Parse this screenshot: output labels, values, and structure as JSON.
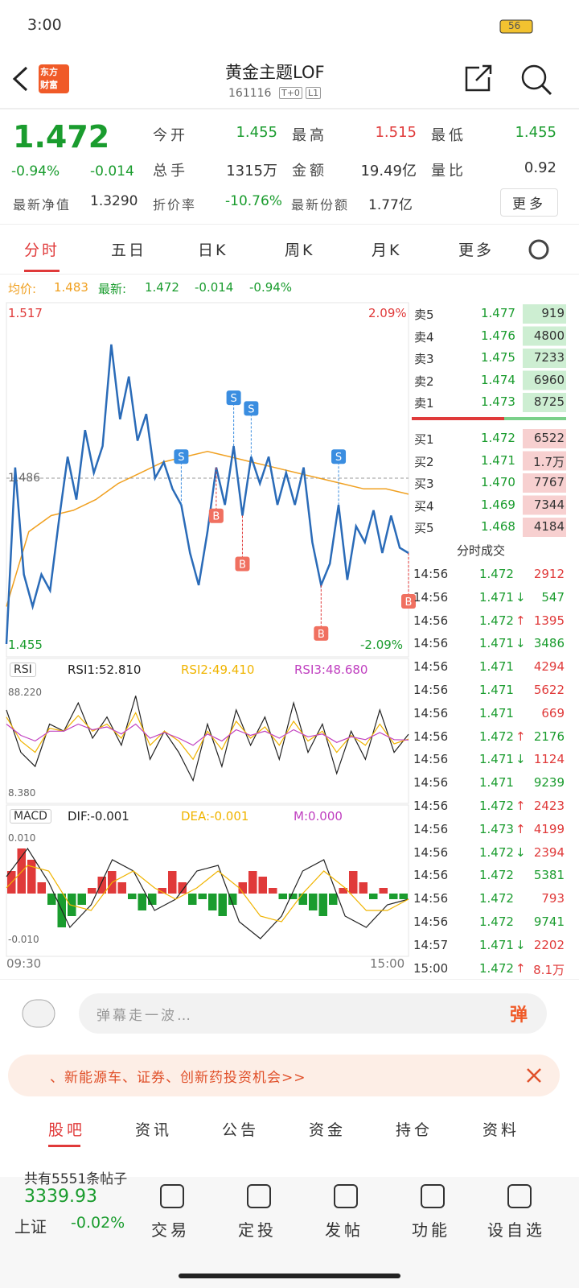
{
  "status": {
    "time": "3:00",
    "battery": "56"
  },
  "header": {
    "title": "黄金主题LOF",
    "code": "161116",
    "tags": [
      "T+0",
      "L1"
    ],
    "logo": "东方\n财富"
  },
  "quote": {
    "price": "1.472",
    "change_pct": "-0.94%",
    "change": "-0.014",
    "fields": [
      {
        "label": "今开",
        "value": "1.455",
        "color": "#1a9c2e"
      },
      {
        "label": "最高",
        "value": "1.515",
        "color": "#e03a3a"
      },
      {
        "label": "最低",
        "value": "1.455",
        "color": "#1a9c2e"
      },
      {
        "label": "总手",
        "value": "1315万",
        "color": "#333333"
      },
      {
        "label": "金额",
        "value": "19.49亿",
        "color": "#333333"
      },
      {
        "label": "量比",
        "value": "0.92",
        "color": "#333333"
      }
    ],
    "extra": [
      {
        "label": "最新净值",
        "value": "1.3290",
        "color": "#333333"
      },
      {
        "label": "折价率",
        "value": "-10.76%",
        "color": "#1a9c2e"
      },
      {
        "label": "最新份额",
        "value": "1.77亿",
        "color": "#333333"
      }
    ],
    "more": "更多"
  },
  "tabs": [
    "分时",
    "五日",
    "日K",
    "周K",
    "月K",
    "更多"
  ],
  "summary": {
    "avg_label": "均价:",
    "avg": "1.483",
    "last_label": "最新:",
    "last": "1.472",
    "change": "-0.014",
    "change_pct": "-0.94%"
  },
  "intraday": {
    "ylim": [
      1.455,
      1.517
    ],
    "ref": 1.486,
    "top_label": "1.517",
    "bottom_label": "1.455",
    "ref_label": "1.486",
    "top_pct": "2.09%",
    "bottom_pct": "-2.09%",
    "x_start": "09:30",
    "x_end": "15:00",
    "price": [
      1.455,
      1.488,
      1.468,
      1.462,
      1.468,
      1.465,
      1.478,
      1.49,
      1.482,
      1.495,
      1.487,
      1.492,
      1.511,
      1.497,
      1.505,
      1.493,
      1.498,
      1.486,
      1.489,
      1.484,
      1.481,
      1.472,
      1.466,
      1.476,
      1.488,
      1.481,
      1.492,
      1.479,
      1.49,
      1.485,
      1.49,
      1.481,
      1.487,
      1.481,
      1.488,
      1.474,
      1.466,
      1.47,
      1.481,
      1.467,
      1.477,
      1.474,
      1.48,
      1.472,
      1.479,
      1.473,
      1.472
    ],
    "avg": [
      1.462,
      1.476,
      1.479,
      1.48,
      1.482,
      1.485,
      1.487,
      1.489,
      1.49,
      1.491,
      1.49,
      1.489,
      1.488,
      1.487,
      1.486,
      1.485,
      1.484,
      1.484,
      1.483
    ],
    "markers": [
      {
        "label": "S",
        "at": 20
      },
      {
        "label": "B",
        "at": 24
      },
      {
        "label": "S",
        "at": 26
      },
      {
        "label": "B",
        "at": 27
      },
      {
        "label": "S",
        "at": 28
      },
      {
        "label": "S",
        "at": 38
      },
      {
        "label": "B",
        "at": 36
      },
      {
        "label": "B",
        "at": 46
      }
    ]
  },
  "rsi": {
    "name": "RSI",
    "lines": [
      {
        "label": "RSI1:52.810",
        "color": "#222222"
      },
      {
        "label": "RSI2:49.410",
        "color": "#f0b400"
      },
      {
        "label": "RSI3:48.680",
        "color": "#c040c0"
      }
    ],
    "top": "88.220",
    "bottom": "8.380",
    "ylim": [
      8.38,
      88.22
    ],
    "series": [
      [
        70,
        40,
        30,
        60,
        55,
        75,
        50,
        65,
        45,
        80,
        35,
        55,
        40,
        20,
        60,
        30,
        70,
        45,
        65,
        35,
        75,
        40,
        60,
        25,
        55,
        35,
        70,
        40,
        52.81
      ],
      [
        65,
        48,
        40,
        57,
        55,
        66,
        55,
        60,
        50,
        68,
        45,
        55,
        48,
        35,
        55,
        42,
        62,
        50,
        58,
        45,
        62,
        48,
        55,
        40,
        52,
        45,
        60,
        46,
        49.41
      ],
      [
        60,
        52,
        48,
        55,
        55,
        60,
        56,
        58,
        53,
        60,
        50,
        54,
        50,
        45,
        53,
        48,
        56,
        52,
        55,
        50,
        56,
        51,
        53,
        47,
        51,
        49,
        54,
        49,
        48.68
      ]
    ]
  },
  "macd": {
    "name": "MACD",
    "dif": "DIF:-0.001",
    "dea": "DEA:-0.001",
    "m": "M:0.000",
    "top": "0.010",
    "bottom": "-0.010",
    "ylim": [
      -0.01,
      0.01
    ],
    "hist": [
      0.004,
      0.008,
      0.006,
      0.002,
      -0.002,
      -0.006,
      -0.004,
      -0.002,
      0.001,
      0.003,
      0.004,
      0.002,
      -0.001,
      -0.003,
      -0.002,
      0.001,
      0.004,
      0.002,
      -0.002,
      -0.001,
      -0.003,
      -0.004,
      -0.002,
      0.002,
      0.004,
      0.003,
      0.001,
      -0.001,
      -0.001,
      -0.002,
      -0.003,
      -0.004,
      -0.002,
      0.001,
      0.004,
      0.002,
      -0.001,
      0.001,
      -0.001,
      -0.001
    ],
    "dif_line": [
      0.003,
      0.008,
      0.002,
      -0.006,
      -0.002,
      0.006,
      0.004,
      -0.003,
      -0.001,
      0.004,
      0.005,
      -0.005,
      -0.008,
      -0.004,
      0.004,
      0.006,
      -0.004,
      -0.006,
      -0.002,
      -0.001
    ],
    "dea_line": [
      0.001,
      0.005,
      0.004,
      -0.002,
      -0.003,
      0.002,
      0.004,
      0.001,
      -0.001,
      0.001,
      0.004,
      0.001,
      -0.004,
      -0.005,
      0.0,
      0.004,
      0.001,
      -0.003,
      -0.003,
      -0.001
    ]
  },
  "orderbook": {
    "sells": [
      {
        "label": "卖5",
        "price": "1.477",
        "vol": "919"
      },
      {
        "label": "卖4",
        "price": "1.476",
        "vol": "4800"
      },
      {
        "label": "卖3",
        "price": "1.475",
        "vol": "7233"
      },
      {
        "label": "卖2",
        "price": "1.474",
        "vol": "6960"
      },
      {
        "label": "卖1",
        "price": "1.473",
        "vol": "8725"
      }
    ],
    "buys": [
      {
        "label": "买1",
        "price": "1.472",
        "vol": "6522"
      },
      {
        "label": "买2",
        "price": "1.471",
        "vol": "1.7万"
      },
      {
        "label": "买3",
        "price": "1.470",
        "vol": "7767"
      },
      {
        "label": "买4",
        "price": "1.469",
        "vol": "7344"
      },
      {
        "label": "买5",
        "price": "1.468",
        "vol": "4184"
      }
    ],
    "trades_title": "分时成交",
    "trades": [
      [
        "14:56",
        "1.472",
        "",
        "2912"
      ],
      [
        "14:56",
        "1.471",
        "↓",
        "547"
      ],
      [
        "14:56",
        "1.472",
        "↑",
        "1395"
      ],
      [
        "14:56",
        "1.471",
        "↓",
        "3486"
      ],
      [
        "14:56",
        "1.471",
        "",
        "4294"
      ],
      [
        "14:56",
        "1.471",
        "",
        "5622"
      ],
      [
        "14:56",
        "1.471",
        "",
        "669"
      ],
      [
        "14:56",
        "1.472",
        "↑",
        "2176"
      ],
      [
        "14:56",
        "1.471",
        "↓",
        "1124"
      ],
      [
        "14:56",
        "1.471",
        "",
        "9239"
      ],
      [
        "14:56",
        "1.472",
        "↑",
        "2423"
      ],
      [
        "14:56",
        "1.473",
        "↑",
        "4199"
      ],
      [
        "14:56",
        "1.472",
        "↓",
        "2394"
      ],
      [
        "14:56",
        "1.472",
        "",
        "5381"
      ],
      [
        "14:56",
        "1.472",
        "",
        "793"
      ],
      [
        "14:56",
        "1.472",
        "",
        "9741"
      ],
      [
        "14:57",
        "1.471",
        "↓",
        "2202"
      ],
      [
        "15:00",
        "1.472",
        "↑",
        "8.1万"
      ]
    ]
  },
  "comment": {
    "placeholder": "弹幕走一波…",
    "button": "弹"
  },
  "banner": {
    "text": "、新能源车、证券、创新药投资机会>>"
  },
  "subtabs": [
    "股吧",
    "资讯",
    "公告",
    "资金",
    "持仓",
    "资料"
  ],
  "posts": "共有5551条帖子",
  "bottom": {
    "index_value": "3339.93",
    "index_name": "上证",
    "index_change": "-0.02%",
    "buttons": [
      "交易",
      "定投",
      "发帖",
      "功能",
      "设自选"
    ]
  }
}
